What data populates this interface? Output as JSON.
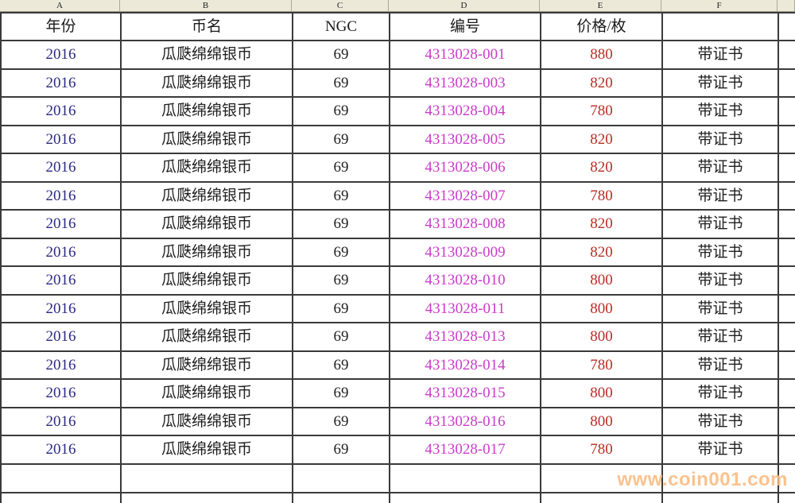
{
  "column_strip": {
    "letters": [
      "A",
      "B",
      "C",
      "D",
      "E",
      "F"
    ]
  },
  "header": {
    "year": "年份",
    "name": "币名",
    "ngc": "NGC",
    "serial": "编号",
    "price": "价格/枚",
    "cert": ""
  },
  "rows": [
    {
      "year": "2016",
      "name": "瓜瓞绵绵银币",
      "ngc": "69",
      "serial": "4313028-001",
      "price": "880",
      "cert": "带证书"
    },
    {
      "year": "2016",
      "name": "瓜瓞绵绵银币",
      "ngc": "69",
      "serial": "4313028-003",
      "price": "820",
      "cert": "带证书"
    },
    {
      "year": "2016",
      "name": "瓜瓞绵绵银币",
      "ngc": "69",
      "serial": "4313028-004",
      "price": "780",
      "cert": "带证书"
    },
    {
      "year": "2016",
      "name": "瓜瓞绵绵银币",
      "ngc": "69",
      "serial": "4313028-005",
      "price": "820",
      "cert": "带证书"
    },
    {
      "year": "2016",
      "name": "瓜瓞绵绵银币",
      "ngc": "69",
      "serial": "4313028-006",
      "price": "820",
      "cert": "带证书"
    },
    {
      "year": "2016",
      "name": "瓜瓞绵绵银币",
      "ngc": "69",
      "serial": "4313028-007",
      "price": "780",
      "cert": "带证书"
    },
    {
      "year": "2016",
      "name": "瓜瓞绵绵银币",
      "ngc": "69",
      "serial": "4313028-008",
      "price": "820",
      "cert": "带证书"
    },
    {
      "year": "2016",
      "name": "瓜瓞绵绵银币",
      "ngc": "69",
      "serial": "4313028-009",
      "price": "820",
      "cert": "带证书"
    },
    {
      "year": "2016",
      "name": "瓜瓞绵绵银币",
      "ngc": "69",
      "serial": "4313028-010",
      "price": "800",
      "cert": "带证书"
    },
    {
      "year": "2016",
      "name": "瓜瓞绵绵银币",
      "ngc": "69",
      "serial": "4313028-011",
      "price": "800",
      "cert": "带证书"
    },
    {
      "year": "2016",
      "name": "瓜瓞绵绵银币",
      "ngc": "69",
      "serial": "4313028-013",
      "price": "800",
      "cert": "带证书"
    },
    {
      "year": "2016",
      "name": "瓜瓞绵绵银币",
      "ngc": "69",
      "serial": "4313028-014",
      "price": "780",
      "cert": "带证书"
    },
    {
      "year": "2016",
      "name": "瓜瓞绵绵银币",
      "ngc": "69",
      "serial": "4313028-015",
      "price": "800",
      "cert": "带证书"
    },
    {
      "year": "2016",
      "name": "瓜瓞绵绵银币",
      "ngc": "69",
      "serial": "4313028-016",
      "price": "800",
      "cert": "带证书"
    },
    {
      "year": "2016",
      "name": "瓜瓞绵绵银币",
      "ngc": "69",
      "serial": "4313028-017",
      "price": "780",
      "cert": "带证书"
    }
  ],
  "watermark": {
    "text": "www.coin001.com",
    "color": "#FBBC82"
  },
  "colors": {
    "year_text": "#2A2A86",
    "serial_text": "#CB3ACB",
    "price_text": "#BB2B23",
    "body_text": "#1F1F1F",
    "strip_background": "#ECE9D8",
    "grid_border": "#3A3A3A"
  }
}
